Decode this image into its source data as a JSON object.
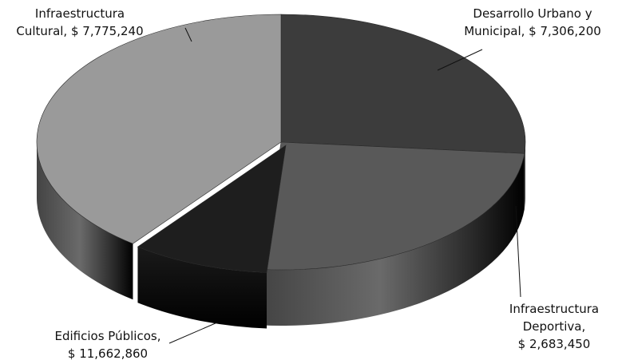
{
  "chart_data": {
    "type": "pie",
    "style": "3d-exploded-perspective",
    "legend": "none",
    "slices": [
      {
        "label": "Infraestructura Cultural",
        "label_lines": [
          "Infraestructura",
          "Cultural, $ 7,775,240"
        ],
        "value": 7775240,
        "color": "#3c3c3c"
      },
      {
        "label": "Desarrollo Urbano y Municipal",
        "label_lines": [
          "Desarrollo Urbano y",
          "Municipal, $ 7,306,200"
        ],
        "value": 7306200,
        "color": "#595959"
      },
      {
        "label": "Infraestructura Deportiva",
        "label_lines": [
          "Infraestructura",
          "Deportiva,",
          "$ 2,683,450"
        ],
        "value": 2683450,
        "color": "#1e1e1e"
      },
      {
        "label": "Edificios Públicos",
        "label_lines": [
          "Edificios Públicos,",
          "$ 11,662,860"
        ],
        "value": 11662860,
        "color": "#9a9a9a"
      }
    ]
  }
}
